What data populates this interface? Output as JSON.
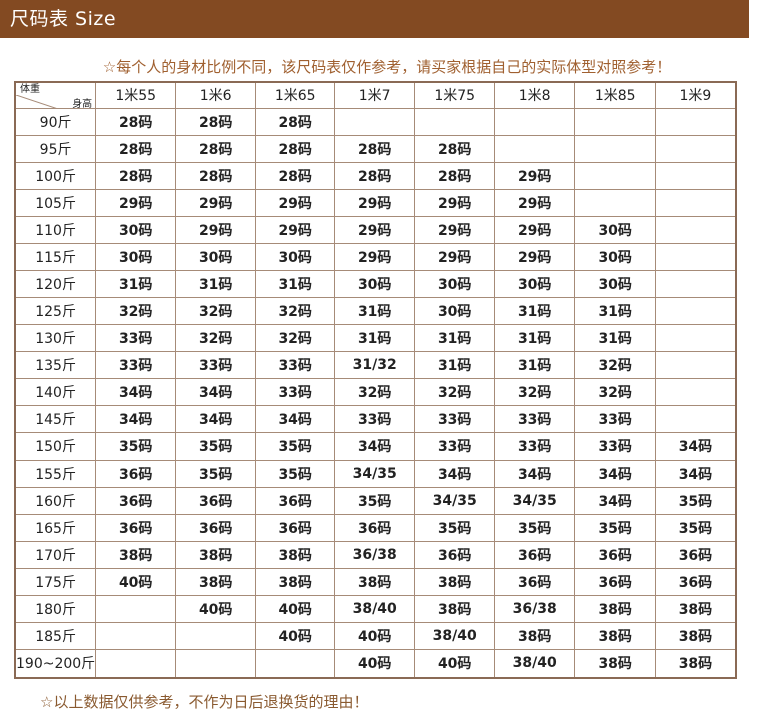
{
  "header": {
    "title": "尺码表  Size"
  },
  "notes": {
    "top": "☆每个人的身材比例不同，该尺码表仅作参考，请买家根据自己的实际体型对照参考！",
    "bottom": "☆以上数据仅供参考，不作为日后退换货的理由！"
  },
  "table": {
    "corner_height_label": "身高",
    "corner_weight_label": "体重",
    "heights": [
      "1米55",
      "1米6",
      "1米65",
      "1米7",
      "1米75",
      "1米8",
      "1米85",
      "1米9"
    ],
    "rows": [
      {
        "weight": "90斤",
        "sizes": [
          "28码",
          "28码",
          "28码",
          "",
          "",
          "",
          "",
          ""
        ]
      },
      {
        "weight": "95斤",
        "sizes": [
          "28码",
          "28码",
          "28码",
          "28码",
          "28码",
          "",
          "",
          ""
        ]
      },
      {
        "weight": "100斤",
        "sizes": [
          "28码",
          "28码",
          "28码",
          "28码",
          "28码",
          "29码",
          "",
          ""
        ]
      },
      {
        "weight": "105斤",
        "sizes": [
          "29码",
          "29码",
          "29码",
          "29码",
          "29码",
          "29码",
          "",
          ""
        ]
      },
      {
        "weight": "110斤",
        "sizes": [
          "30码",
          "29码",
          "29码",
          "29码",
          "29码",
          "29码",
          "30码",
          ""
        ]
      },
      {
        "weight": "115斤",
        "sizes": [
          "30码",
          "30码",
          "30码",
          "29码",
          "29码",
          "29码",
          "30码",
          ""
        ]
      },
      {
        "weight": "120斤",
        "sizes": [
          "31码",
          "31码",
          "31码",
          "30码",
          "30码",
          "30码",
          "30码",
          ""
        ]
      },
      {
        "weight": "125斤",
        "sizes": [
          "32码",
          "32码",
          "32码",
          "31码",
          "30码",
          "31码",
          "31码",
          ""
        ]
      },
      {
        "weight": "130斤",
        "sizes": [
          "33码",
          "32码",
          "32码",
          "31码",
          "31码",
          "31码",
          "31码",
          ""
        ]
      },
      {
        "weight": "135斤",
        "sizes": [
          "33码",
          "33码",
          "33码",
          "31/32",
          "31码",
          "31码",
          "32码",
          ""
        ]
      },
      {
        "weight": "140斤",
        "sizes": [
          "34码",
          "34码",
          "33码",
          "32码",
          "32码",
          "32码",
          "32码",
          ""
        ]
      },
      {
        "weight": "145斤",
        "sizes": [
          "34码",
          "34码",
          "34码",
          "33码",
          "33码",
          "33码",
          "33码",
          ""
        ]
      },
      {
        "weight": "150斤",
        "sizes": [
          "35码",
          "35码",
          "35码",
          "34码",
          "33码",
          "33码",
          "33码",
          "34码"
        ]
      },
      {
        "weight": "155斤",
        "sizes": [
          "36码",
          "35码",
          "35码",
          "34/35",
          "34码",
          "34码",
          "34码",
          "34码"
        ]
      },
      {
        "weight": "160斤",
        "sizes": [
          "36码",
          "36码",
          "36码",
          "35码",
          "34/35",
          "34/35",
          "34码",
          "35码"
        ]
      },
      {
        "weight": "165斤",
        "sizes": [
          "36码",
          "36码",
          "36码",
          "36码",
          "35码",
          "35码",
          "35码",
          "35码"
        ]
      },
      {
        "weight": "170斤",
        "sizes": [
          "38码",
          "38码",
          "38码",
          "36/38",
          "36码",
          "36码",
          "36码",
          "36码"
        ]
      },
      {
        "weight": "175斤",
        "sizes": [
          "40码",
          "38码",
          "38码",
          "38码",
          "38码",
          "36码",
          "36码",
          "36码"
        ]
      },
      {
        "weight": "180斤",
        "sizes": [
          "",
          "40码",
          "40码",
          "38/40",
          "38码",
          "36/38",
          "38码",
          "38码"
        ]
      },
      {
        "weight": "185斤",
        "sizes": [
          "",
          "",
          "40码",
          "40码",
          "38/40",
          "38码",
          "38码",
          "38码"
        ]
      },
      {
        "weight": "190~200斤",
        "sizes": [
          "",
          "",
          "",
          "40码",
          "40码",
          "38/40",
          "38码",
          "38码"
        ]
      }
    ]
  }
}
